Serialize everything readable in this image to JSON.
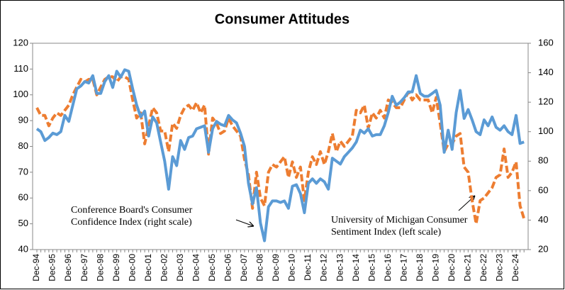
{
  "chart_data": {
    "type": "line",
    "title": "Consumer Attitudes",
    "categories": [
      "Dec-94",
      null,
      null,
      null,
      "Dec-95",
      null,
      null,
      null,
      "Dec-96",
      null,
      null,
      null,
      "Dec-97",
      null,
      null,
      null,
      "Dec-98",
      null,
      null,
      null,
      "Dec-99",
      null,
      null,
      null,
      "Dec-00",
      null,
      null,
      null,
      "Dec-01",
      null,
      null,
      null,
      "Dec-02",
      null,
      null,
      null,
      "Dec-03",
      null,
      null,
      null,
      "Dec-04",
      null,
      null,
      null,
      "Dec-05",
      null,
      null,
      null,
      "Dec-06",
      null,
      null,
      null,
      "Dec-07",
      null,
      null,
      null,
      "Dec-08",
      null,
      null,
      null,
      "Dec-09",
      null,
      null,
      null,
      "Dec-10",
      null,
      null,
      null,
      "Dec-11",
      null,
      null,
      null,
      "Dec-12",
      null,
      null,
      null,
      "Dec-13",
      null,
      null,
      null,
      "Dec-14",
      null,
      null,
      null,
      "Dec-15",
      null,
      null,
      null,
      "Dec-16",
      null,
      null,
      null,
      "Dec-17",
      null,
      null,
      null,
      "Dec-18",
      null,
      null,
      null,
      "Dec-19",
      null,
      null,
      null,
      "Dec-20",
      null,
      null,
      null,
      "Dec-21",
      null,
      null,
      null,
      "Dec-22",
      null,
      null,
      null,
      "Dec-23",
      null,
      null,
      null,
      "Dec-24",
      null,
      null
    ],
    "series": [
      {
        "name": "University of Michigan Consumer Sentiment Index",
        "color": "#ED7D31",
        "dashed": true,
        "axis": "y",
        "values": [
          95,
          92,
          92,
          88,
          91,
          93,
          92,
          94,
          96,
          100,
          103,
          106,
          105,
          106,
          106,
          100,
          103,
          106,
          107,
          107,
          105,
          107,
          107,
          106,
          98,
          91,
          93,
          81,
          88,
          95,
          93,
          86,
          86,
          78,
          89,
          87,
          92,
          95,
          96,
          94,
          97,
          93,
          96,
          77,
          91,
          89,
          85,
          86,
          91,
          88,
          86,
          84,
          75,
          69,
          56,
          70,
          60,
          57,
          70,
          73,
          72,
          74,
          76,
          68,
          74,
          68,
          72,
          59,
          70,
          76,
          73,
          78,
          73,
          78,
          85,
          78,
          82,
          80,
          82,
          84,
          94,
          93,
          96,
          87,
          93,
          91,
          94,
          91,
          98,
          97,
          95,
          95,
          98,
          101,
          98,
          100,
          98,
          98,
          98,
          93,
          99,
          89,
          78,
          81,
          81,
          84,
          85,
          72,
          70,
          59,
          50,
          59,
          60,
          62,
          64,
          68,
          69,
          79,
          68,
          70,
          74,
          57,
          52
        ]
      },
      {
        "name": "Conference Board's Consumer Confidence Index",
        "color": "#5B9BD5",
        "dashed": false,
        "axis": "y2",
        "values": [
          102,
          100,
          94,
          96,
          99,
          98,
          100,
          111,
          107,
          118,
          129,
          131,
          134,
          133,
          138,
          126,
          126,
          134,
          138,
          130,
          141,
          137,
          142,
          141,
          129,
          118,
          110,
          114,
          97,
          110,
          106,
          93,
          80,
          61,
          83,
          77,
          94,
          88,
          96,
          97,
          102,
          103,
          104,
          86,
          102,
          107,
          105,
          104,
          111,
          108,
          106,
          99,
          90,
          65,
          51,
          62,
          38,
          26,
          49,
          53,
          53,
          52,
          53,
          48,
          63,
          64,
          58,
          45,
          65,
          68,
          65,
          68,
          66,
          61,
          82,
          80,
          78,
          83,
          86,
          89,
          93,
          101,
          99,
          102,
          97,
          98,
          98,
          104,
          113,
          124,
          118,
          120,
          123,
          127,
          127,
          138,
          126,
          124,
          124,
          126,
          128,
          118,
          86,
          101,
          88,
          113,
          128,
          109,
          115,
          108,
          100,
          98,
          108,
          104,
          110,
          103,
          101,
          104,
          100,
          98,
          111,
          92,
          93
        ]
      }
    ],
    "ylim": [
      40,
      120
    ],
    "yticks": [
      40,
      50,
      60,
      70,
      80,
      90,
      100,
      110,
      120
    ],
    "y2lim": [
      20,
      160
    ],
    "y2ticks": [
      20,
      40,
      60,
      80,
      100,
      120,
      140,
      160
    ],
    "annotations": [
      {
        "lines": [
          "Conference Board's Consumer",
          "Confidence Index (right scale)"
        ]
      },
      {
        "lines": [
          "University of Michigan Consumer",
          "Sentiment Index (left scale)"
        ]
      }
    ]
  }
}
